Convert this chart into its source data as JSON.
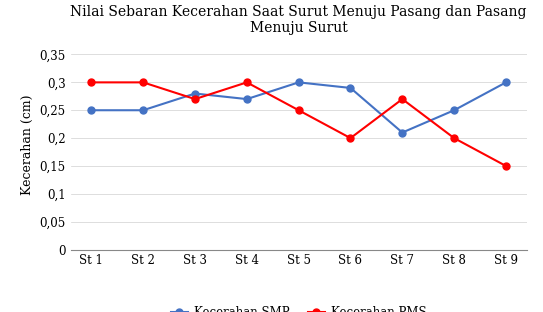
{
  "title": "Nilai Sebaran Kecerahan Saat Surut Menuju Pasang dan Pasang\nMenuju Surut",
  "xlabel": "",
  "ylabel": "Kecerahan (cm)",
  "categories": [
    "St 1",
    "St 2",
    "St 3",
    "St 4",
    "St 5",
    "St 6",
    "St 7",
    "St 8",
    "St 9"
  ],
  "smp_values": [
    0.25,
    0.25,
    0.28,
    0.27,
    0.3,
    0.29,
    0.21,
    0.25,
    0.3
  ],
  "pms_values": [
    0.3,
    0.3,
    0.27,
    0.3,
    0.25,
    0.2,
    0.27,
    0.2,
    0.15
  ],
  "smp_color": "#4472C4",
  "pms_color": "#FF0000",
  "smp_label": "Kecerahan SMP",
  "pms_label": "Kecerahan PMS",
  "ylim": [
    0,
    0.375
  ],
  "yticks": [
    0,
    0.05,
    0.1,
    0.15,
    0.2,
    0.25,
    0.3,
    0.35
  ],
  "ytick_labels": [
    "0",
    "0,05",
    "0,1",
    "0,15",
    "0,2",
    "0,25",
    "0,3",
    "0,35"
  ],
  "title_fontsize": 10,
  "axis_label_fontsize": 9,
  "tick_fontsize": 8.5,
  "legend_fontsize": 8.5,
  "background_color": "#ffffff",
  "grid_color": "#d0d0d0",
  "grid_linewidth": 0.5,
  "line_linewidth": 1.5,
  "marker_size": 5
}
